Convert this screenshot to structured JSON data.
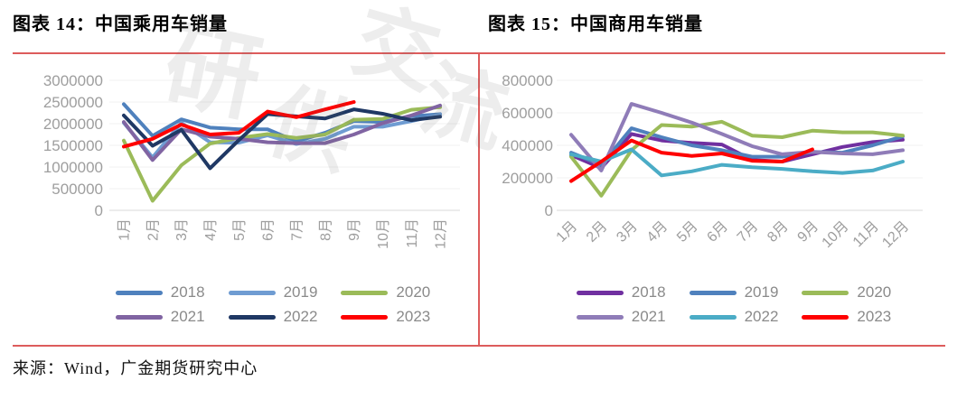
{
  "page": {
    "source": "来源：Wind，广金期货研究中心",
    "watermark": [
      "研",
      "供",
      "交",
      "流"
    ],
    "colors": {
      "frame_red": "#dd5c5c"
    }
  },
  "chart_data": [
    {
      "type": "line",
      "title": "图表 14：中国乘用车销量",
      "xlabel": "",
      "ylabel": "",
      "legend_position": "bottom",
      "grid": true,
      "x_tick_rotation": -90,
      "ylim": [
        0,
        3000000
      ],
      "yticks": [
        0,
        500000,
        1000000,
        1500000,
        2000000,
        2500000,
        3000000
      ],
      "categories": [
        "1月",
        "2月",
        "3月",
        "4月",
        "5月",
        "6月",
        "7月",
        "8月",
        "9月",
        "10月",
        "11月",
        "12月"
      ],
      "series": [
        {
          "name": "2018",
          "color": "#4F81BD",
          "values": [
            2450000,
            1720000,
            2100000,
            1910000,
            1870000,
            1870000,
            1590000,
            1790000,
            2060000,
            2040000,
            2170000,
            2220000
          ]
        },
        {
          "name": "2019",
          "color": "#6F9CD2",
          "values": [
            2020000,
            1220000,
            2020000,
            1570000,
            1560000,
            1730000,
            1530000,
            1650000,
            1930000,
            1930000,
            2060000,
            2210000
          ]
        },
        {
          "name": "2020",
          "color": "#9BBB59",
          "values": [
            1610000,
            220000,
            1040000,
            1540000,
            1670000,
            1760000,
            1670000,
            1750000,
            2090000,
            2110000,
            2320000,
            2380000
          ]
        },
        {
          "name": "2021",
          "color": "#8064A2",
          "values": [
            2040000,
            1160000,
            1870000,
            1700000,
            1650000,
            1570000,
            1550000,
            1550000,
            1750000,
            2010000,
            2190000,
            2420000
          ]
        },
        {
          "name": "2022",
          "color": "#1F3864",
          "values": [
            2190000,
            1490000,
            1860000,
            970000,
            1620000,
            2220000,
            2170000,
            2120000,
            2330000,
            2230000,
            2080000,
            2160000
          ]
        },
        {
          "name": "2023",
          "color": "#FF0000",
          "values": [
            1470000,
            1650000,
            1980000,
            1750000,
            1790000,
            2280000,
            2150000,
            2330000,
            2500000
          ]
        }
      ]
    },
    {
      "type": "line",
      "title": "图表 15：中国商用车销量",
      "xlabel": "",
      "ylabel": "",
      "legend_position": "bottom",
      "grid": true,
      "x_tick_rotation": -45,
      "ylim": [
        0,
        800000
      ],
      "yticks": [
        0,
        200000,
        400000,
        600000,
        800000
      ],
      "categories": [
        "1月",
        "2月",
        "3月",
        "4月",
        "5月",
        "6月",
        "7月",
        "8月",
        "9月",
        "10月",
        "11月",
        "12月"
      ],
      "series": [
        {
          "name": "2018",
          "color": "#7030A0",
          "values": [
            340000,
            260000,
            470000,
            430000,
            415000,
            405000,
            310000,
            300000,
            345000,
            390000,
            420000,
            435000
          ]
        },
        {
          "name": "2019",
          "color": "#4F81BD",
          "values": [
            355000,
            280000,
            505000,
            450000,
            400000,
            370000,
            330000,
            330000,
            360000,
            355000,
            400000,
            455000
          ]
        },
        {
          "name": "2020",
          "color": "#9BBB59",
          "values": [
            330000,
            90000,
            370000,
            525000,
            515000,
            545000,
            460000,
            450000,
            490000,
            480000,
            480000,
            460000
          ]
        },
        {
          "name": "2021",
          "color": "#8F7CB8",
          "values": [
            465000,
            245000,
            655000,
            600000,
            540000,
            470000,
            395000,
            345000,
            360000,
            350000,
            345000,
            370000
          ]
        },
        {
          "name": "2022",
          "color": "#4BACC6",
          "values": [
            345000,
            300000,
            375000,
            215000,
            240000,
            280000,
            265000,
            255000,
            240000,
            230000,
            245000,
            300000
          ]
        },
        {
          "name": "2023",
          "color": "#FF0000",
          "values": [
            180000,
            300000,
            430000,
            355000,
            335000,
            350000,
            305000,
            300000,
            375000
          ]
        }
      ]
    }
  ]
}
